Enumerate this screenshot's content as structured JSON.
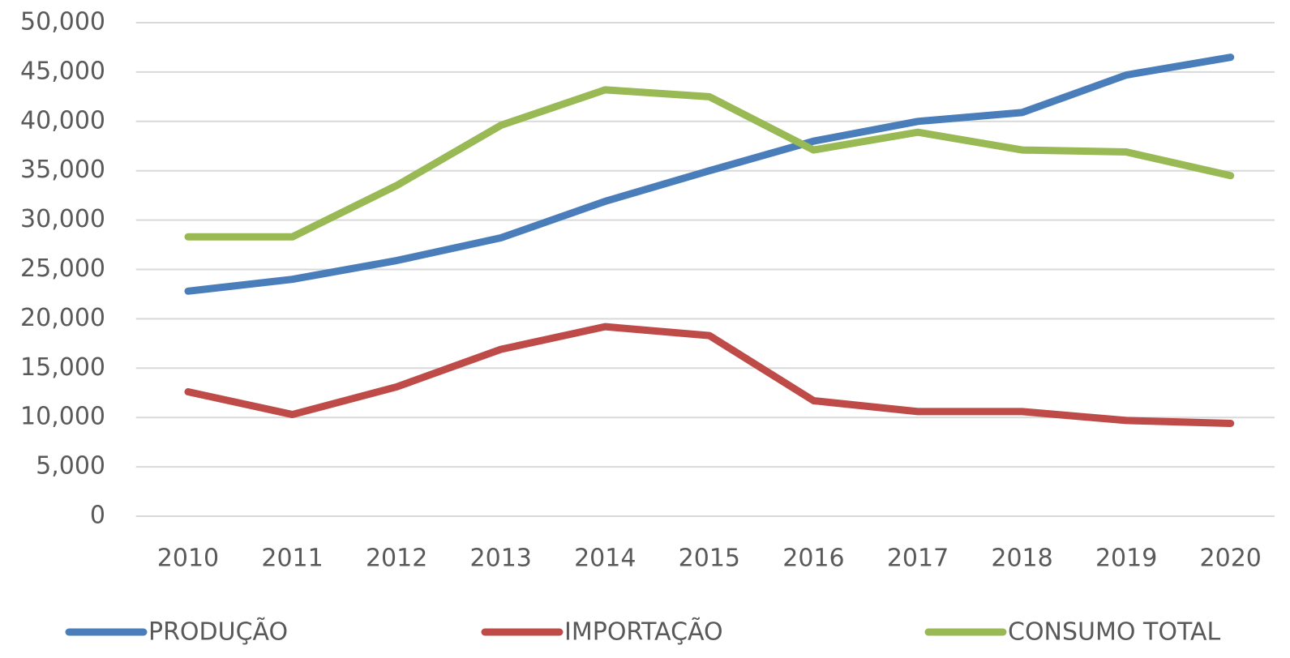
{
  "chart_data": {
    "type": "line",
    "categories": [
      "2010",
      "2011",
      "2012",
      "2013",
      "2014",
      "2015",
      "2016",
      "2017",
      "2018",
      "2019",
      "2020"
    ],
    "series": [
      {
        "name": "PRODUÇÃO",
        "color": "#4a7ebb",
        "values": [
          22800,
          24000,
          25900,
          28200,
          31900,
          35000,
          38000,
          40000,
          40900,
          44700,
          46500
        ]
      },
      {
        "name": "IMPORTAÇÃO",
        "color": "#be4b48",
        "values": [
          12600,
          10300,
          13100,
          16900,
          19200,
          18300,
          11700,
          10600,
          10600,
          9700,
          9400
        ]
      },
      {
        "name": "CONSUMO TOTAL",
        "color": "#98b954",
        "values": [
          28300,
          28300,
          33500,
          39600,
          43200,
          42500,
          37100,
          38900,
          37100,
          36900,
          34500
        ]
      }
    ],
    "ylim": [
      0,
      50000
    ],
    "yticks": [
      0,
      {
        "value": 5000,
        "label": "5,000"
      },
      {
        "value": 10000,
        "label": "10,000"
      },
      {
        "value": 15000,
        "label": "15,000"
      },
      {
        "value": 20000,
        "label": "20,000"
      },
      {
        "value": 25000,
        "label": "25,000"
      },
      {
        "value": 30000,
        "label": "30,000"
      },
      {
        "value": 35000,
        "label": "35,000"
      },
      {
        "value": 40000,
        "label": "40,000"
      },
      {
        "value": 45000,
        "label": "45,000"
      },
      {
        "value": 50000,
        "label": "50,000"
      }
    ],
    "grid": true,
    "legend": "bottom"
  }
}
